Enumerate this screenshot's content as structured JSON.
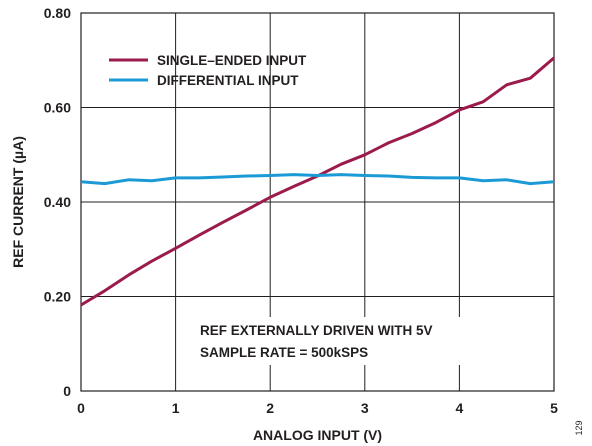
{
  "chart_data": {
    "type": "line",
    "title": "",
    "xlabel": "ANALOG INPUT (V)",
    "ylabel": "REF CURRENT (µA)",
    "xlim": [
      0,
      5
    ],
    "ylim": [
      0,
      0.8
    ],
    "xticks": [
      0,
      1,
      2,
      3,
      4,
      5
    ],
    "xtick_labels": [
      "0",
      "1",
      "2",
      "3",
      "4",
      "5"
    ],
    "yticks": [
      0,
      0.2,
      0.4,
      0.6,
      0.8
    ],
    "ytick_labels": [
      "0",
      "0.20",
      "0.40",
      "0.60",
      "0.80"
    ],
    "grid": true,
    "legend_position": "top-left",
    "series": [
      {
        "name": "SINGLE–ENDED INPUT",
        "color": "#9b1b4d",
        "x": [
          0,
          0.25,
          0.5,
          0.75,
          1.0,
          1.25,
          1.5,
          1.75,
          2.0,
          2.25,
          2.5,
          2.75,
          3.0,
          3.25,
          3.5,
          3.75,
          4.0,
          4.25,
          4.5,
          4.75,
          5.0
        ],
        "y": [
          0.182,
          0.212,
          0.245,
          0.275,
          0.302,
          0.33,
          0.357,
          0.383,
          0.41,
          0.433,
          0.455,
          0.48,
          0.5,
          0.525,
          0.545,
          0.568,
          0.595,
          0.612,
          0.648,
          0.662,
          0.705
        ]
      },
      {
        "name": "DIFFERENTIAL INPUT",
        "color": "#1b9ad6",
        "x": [
          0,
          0.25,
          0.5,
          0.75,
          1.0,
          1.25,
          1.5,
          1.75,
          2.0,
          2.25,
          2.5,
          2.75,
          3.0,
          3.25,
          3.5,
          3.75,
          4.0,
          4.25,
          4.5,
          4.75,
          5.0
        ],
        "y": [
          0.443,
          0.439,
          0.447,
          0.445,
          0.451,
          0.451,
          0.453,
          0.455,
          0.456,
          0.458,
          0.456,
          0.458,
          0.456,
          0.455,
          0.452,
          0.451,
          0.451,
          0.445,
          0.447,
          0.439,
          0.443
        ]
      }
    ],
    "annotations": [
      "REF EXTERNALLY DRIVEN WITH 5V",
      "SAMPLE RATE = 500kSPS"
    ],
    "figure_id": "129"
  }
}
